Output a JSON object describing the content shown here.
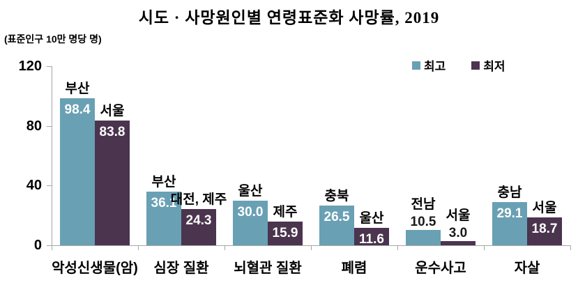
{
  "title": "시도 · 사망원인별 연령표준화 사망률, 2019",
  "unit_label": "(표준인구 10만 명당 명)",
  "legend": {
    "high": {
      "label": "최고",
      "color": "#69A0B4"
    },
    "low": {
      "label": "최저",
      "color": "#4A344E"
    }
  },
  "colors": {
    "high_bar": "#69A0B4",
    "low_bar": "#4A344E",
    "axis": "#A6A6A6",
    "value_inside_text": "#FFFFFF",
    "value_outside_text": "#1A1A1A"
  },
  "y_axis": {
    "ticks": [
      0,
      40,
      80,
      120
    ],
    "max": 120
  },
  "chart_data": {
    "type": "bar",
    "title": "시도 · 사망원인별 연령표준화 사망률, 2019",
    "ylabel": "(표준인구 10만 명당 명)",
    "categories": [
      "악성신생물(암)",
      "심장 질환",
      "뇌혈관 질환",
      "폐렴",
      "운수사고",
      "자살"
    ],
    "series": [
      {
        "name": "최고",
        "color": "#69A0B4",
        "values": [
          98.4,
          36.1,
          30.0,
          26.5,
          10.5,
          29.1
        ],
        "regions": [
          "부산",
          "부산",
          "울산",
          "충북",
          "전남",
          "충남"
        ],
        "value_label_inside": [
          true,
          true,
          true,
          true,
          false,
          true
        ]
      },
      {
        "name": "최저",
        "color": "#4A344E",
        "values": [
          83.8,
          24.3,
          15.9,
          11.6,
          3.0,
          18.7
        ],
        "regions": [
          "서울",
          "대전, 제주",
          "제주",
          "울산",
          "서울",
          "서울"
        ],
        "value_label_inside": [
          true,
          true,
          true,
          true,
          false,
          true
        ]
      }
    ],
    "ylim": [
      0,
      120
    ],
    "grid": false,
    "legend_position": "top-right"
  }
}
